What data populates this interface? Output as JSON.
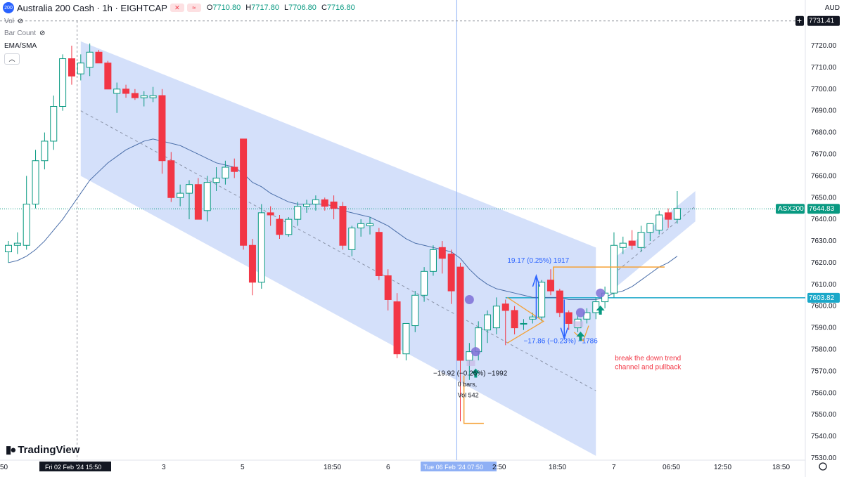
{
  "header": {
    "symbol_badge": "200",
    "title": "Australia 200 Cash · 1h · EIGHTCAP",
    "open_label": "O",
    "open": "7710.80",
    "high_label": "H",
    "high": "7717.80",
    "low_label": "L",
    "low": "7706.80",
    "close_label": "C",
    "close": "7716.80",
    "indicators": [
      "Vol",
      "Bar Count",
      "EMA/SMA"
    ],
    "currency": "AUD"
  },
  "branding": {
    "text": "TradingView"
  },
  "colors": {
    "up": "#089981",
    "down": "#f23645",
    "channel": "#bdd0f7",
    "ema": "#4a6ea9",
    "orange": "#f5a033",
    "cyan": "#1ba8c9",
    "arrow_blue": "#2962ff",
    "arrow_green": "#089981",
    "purple": "#7e6fd6"
  },
  "price_labels": {
    "top_price": "7731.41",
    "asx_label": "ASX200",
    "asx_price": "7644.83",
    "level_price": "7603.82"
  },
  "annotations": {
    "measure_up": "19.17 (0.25%) 1917",
    "measure_down": "−17.86 (−0.23%) −1786",
    "measure_low": "−19.92 (−0.26%) −1992",
    "bars": "0 bars,",
    "vol": "Vol 542",
    "note_line1": "break the down trend",
    "note_line2": "channel and pullback"
  },
  "chart_data": {
    "type": "candlestick",
    "title": "Australia 200 Cash · 1h · EIGHTCAP",
    "ylim": [
      7530,
      7730
    ],
    "y_ticks": [
      7530,
      7540,
      7550,
      7560,
      7570,
      7580,
      7590,
      7600,
      7610,
      7620,
      7630,
      7640,
      7650,
      7660,
      7670,
      7680,
      7690,
      7700,
      7710,
      7720
    ],
    "x_tick_labels": [
      "50",
      "Fri 02 Feb '24  15:50",
      "3",
      "5",
      "18:50",
      "6",
      "Tue 06 Feb '24  07:50",
      "2:50",
      "18:50",
      "7",
      "06:50",
      "12:50",
      "18:50"
    ],
    "candles": [
      {
        "o": 7625,
        "h": 7630,
        "l": 7620,
        "c": 7628
      },
      {
        "o": 7628,
        "h": 7634,
        "l": 7624,
        "c": 7629
      },
      {
        "o": 7628,
        "h": 7660,
        "l": 7626,
        "c": 7647
      },
      {
        "o": 7647,
        "h": 7672,
        "l": 7645,
        "c": 7667
      },
      {
        "o": 7667,
        "h": 7680,
        "l": 7663,
        "c": 7676
      },
      {
        "o": 7676,
        "h": 7697,
        "l": 7672,
        "c": 7692
      },
      {
        "o": 7692,
        "h": 7716,
        "l": 7690,
        "c": 7714
      },
      {
        "o": 7714,
        "h": 7720,
        "l": 7702,
        "c": 7706
      },
      {
        "o": 7707,
        "h": 7716,
        "l": 7704,
        "c": 7712
      },
      {
        "o": 7710,
        "h": 7721,
        "l": 7706,
        "c": 7717
      },
      {
        "o": 7717,
        "h": 7718,
        "l": 7712,
        "c": 7712
      },
      {
        "o": 7712,
        "h": 7713,
        "l": 7700,
        "c": 7700
      },
      {
        "o": 7698,
        "h": 7703,
        "l": 7689,
        "c": 7700
      },
      {
        "o": 7700,
        "h": 7702,
        "l": 7696,
        "c": 7698
      },
      {
        "o": 7698,
        "h": 7700,
        "l": 7695,
        "c": 7696
      },
      {
        "o": 7696,
        "h": 7699,
        "l": 7692,
        "c": 7697
      },
      {
        "o": 7696,
        "h": 7701,
        "l": 7694,
        "c": 7697
      },
      {
        "o": 7697,
        "h": 7700,
        "l": 7661,
        "c": 7667
      },
      {
        "o": 7667,
        "h": 7671,
        "l": 7648,
        "c": 7650
      },
      {
        "o": 7650,
        "h": 7656,
        "l": 7646,
        "c": 7652
      },
      {
        "o": 7652,
        "h": 7658,
        "l": 7640,
        "c": 7656
      },
      {
        "o": 7656,
        "h": 7659,
        "l": 7641,
        "c": 7640
      },
      {
        "o": 7644,
        "h": 7660,
        "l": 7639,
        "c": 7657
      },
      {
        "o": 7657,
        "h": 7664,
        "l": 7653,
        "c": 7659
      },
      {
        "o": 7659,
        "h": 7667,
        "l": 7656,
        "c": 7664
      },
      {
        "o": 7664,
        "h": 7668,
        "l": 7659,
        "c": 7662
      },
      {
        "o": 7677,
        "h": 7677,
        "l": 7626,
        "c": 7628
      },
      {
        "o": 7628,
        "h": 7631,
        "l": 7605,
        "c": 7611
      },
      {
        "o": 7611,
        "h": 7647,
        "l": 7608,
        "c": 7643
      },
      {
        "o": 7643,
        "h": 7646,
        "l": 7637,
        "c": 7642
      },
      {
        "o": 7640,
        "h": 7642,
        "l": 7631,
        "c": 7633
      },
      {
        "o": 7633,
        "h": 7641,
        "l": 7632,
        "c": 7640
      },
      {
        "o": 7640,
        "h": 7648,
        "l": 7637,
        "c": 7646
      },
      {
        "o": 7646,
        "h": 7649,
        "l": 7643,
        "c": 7647
      },
      {
        "o": 7647,
        "h": 7651,
        "l": 7644,
        "c": 7649
      },
      {
        "o": 7649,
        "h": 7650,
        "l": 7644,
        "c": 7646
      },
      {
        "o": 7648,
        "h": 7651,
        "l": 7640,
        "c": 7645
      },
      {
        "o": 7646,
        "h": 7648,
        "l": 7626,
        "c": 7628
      },
      {
        "o": 7626,
        "h": 7637,
        "l": 7623,
        "c": 7636
      },
      {
        "o": 7636,
        "h": 7640,
        "l": 7632,
        "c": 7638
      },
      {
        "o": 7637,
        "h": 7641,
        "l": 7633,
        "c": 7638
      },
      {
        "o": 7634,
        "h": 7636,
        "l": 7612,
        "c": 7614
      },
      {
        "o": 7614,
        "h": 7617,
        "l": 7598,
        "c": 7603
      },
      {
        "o": 7602,
        "h": 7606,
        "l": 7576,
        "c": 7578
      },
      {
        "o": 7578,
        "h": 7592,
        "l": 7575,
        "c": 7592
      },
      {
        "o": 7591,
        "h": 7607,
        "l": 7588,
        "c": 7605
      },
      {
        "o": 7605,
        "h": 7618,
        "l": 7602,
        "c": 7616
      },
      {
        "o": 7616,
        "h": 7628,
        "l": 7614,
        "c": 7626
      },
      {
        "o": 7627,
        "h": 7630,
        "l": 7615,
        "c": 7622
      },
      {
        "o": 7624,
        "h": 7626,
        "l": 7601,
        "c": 7607
      },
      {
        "o": 7618,
        "h": 7620,
        "l": 7547,
        "c": 7575
      },
      {
        "o": 7575,
        "h": 7583,
        "l": 7566,
        "c": 7579
      },
      {
        "o": 7579,
        "h": 7593,
        "l": 7575,
        "c": 7590
      },
      {
        "o": 7589,
        "h": 7598,
        "l": 7583,
        "c": 7596
      },
      {
        "o": 7590,
        "h": 7604,
        "l": 7587,
        "c": 7600
      },
      {
        "o": 7601,
        "h": 7603,
        "l": 7582,
        "c": 7598
      },
      {
        "o": 7598,
        "h": 7600,
        "l": 7587,
        "c": 7590
      },
      {
        "o": 7592,
        "h": 7594,
        "l": 7589,
        "c": 7592
      },
      {
        "o": 7594,
        "h": 7597,
        "l": 7592,
        "c": 7595
      },
      {
        "o": 7595,
        "h": 7612,
        "l": 7593,
        "c": 7611
      },
      {
        "o": 7612,
        "h": 7617,
        "l": 7605,
        "c": 7607
      },
      {
        "o": 7607,
        "h": 7608,
        "l": 7595,
        "c": 7597
      },
      {
        "o": 7597,
        "h": 7598,
        "l": 7589,
        "c": 7592
      },
      {
        "o": 7590,
        "h": 7596,
        "l": 7588,
        "c": 7594
      },
      {
        "o": 7594,
        "h": 7599,
        "l": 7592,
        "c": 7597
      },
      {
        "o": 7597,
        "h": 7604,
        "l": 7594,
        "c": 7602
      },
      {
        "o": 7602,
        "h": 7609,
        "l": 7599,
        "c": 7606
      },
      {
        "o": 7606,
        "h": 7634,
        "l": 7604,
        "c": 7628
      },
      {
        "o": 7627,
        "h": 7632,
        "l": 7624,
        "c": 7629
      },
      {
        "o": 7630,
        "h": 7635,
        "l": 7626,
        "c": 7628
      },
      {
        "o": 7627,
        "h": 7637,
        "l": 7625,
        "c": 7634
      },
      {
        "o": 7634,
        "h": 7638,
        "l": 7630,
        "c": 7638
      },
      {
        "o": 7635,
        "h": 7644,
        "l": 7633,
        "c": 7642
      },
      {
        "o": 7643,
        "h": 7645,
        "l": 7636,
        "c": 7640
      },
      {
        "o": 7640,
        "h": 7653,
        "l": 7638,
        "c": 7645
      }
    ],
    "ema": [
      7620,
      7621,
      7623,
      7626,
      7630,
      7635,
      7640,
      7646,
      7652,
      7658,
      7662,
      7666,
      7669,
      7672,
      7674,
      7676,
      7677,
      7676,
      7675,
      7674,
      7672,
      7670,
      7668,
      7666,
      7665,
      7664,
      7661,
      7657,
      7655,
      7652,
      7650,
      7648,
      7647,
      7647,
      7647,
      7647,
      7646,
      7644,
      7643,
      7642,
      7641,
      7639,
      7637,
      7634,
      7631,
      7629,
      7628,
      7627,
      7626,
      7625,
      7622,
      7617,
      7613,
      7610,
      7608,
      7607,
      7606,
      7605,
      7604,
      7604,
      7604,
      7604,
      7603,
      7603,
      7603,
      7603,
      7604,
      7606,
      7607,
      7609,
      7612,
      7615,
      7618,
      7620,
      7623
    ],
    "levels": [
      {
        "label": "ASX200",
        "value": 7644.83
      },
      {
        "label": "",
        "value": 7603.82
      }
    ]
  }
}
